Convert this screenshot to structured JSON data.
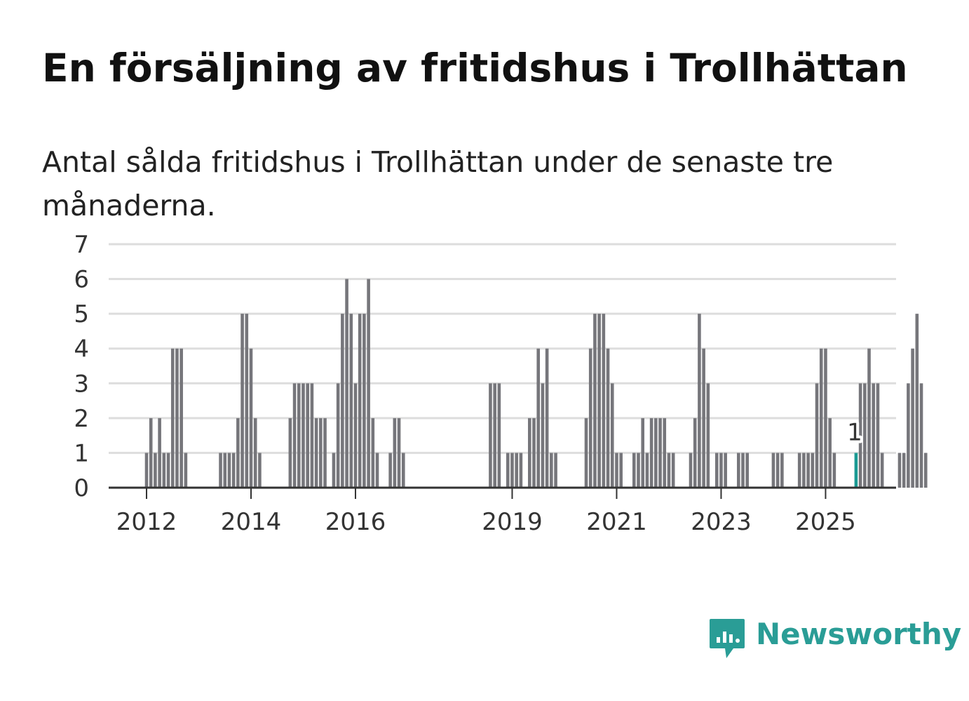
{
  "title": "En försäljning av fritidshus i Trollhättan",
  "subtitle": "Antal sålda fritidshus i Trollhättan under de senaste tre månaderna.",
  "brand": {
    "name": "Newsworthy",
    "color": "#2a9d96",
    "icon": "newsworthy-logo-icon"
  },
  "colors": {
    "bar": "#76767b",
    "highlight": "#1a9a93",
    "grid": "#dddddd",
    "axis": "#333333"
  },
  "chart_data": {
    "type": "bar",
    "title": "En försäljning av fritidshus i Trollhättan",
    "xlabel": "",
    "ylabel": "",
    "ylim": [
      0,
      7
    ],
    "yticks": [
      "0",
      "1",
      "2",
      "3",
      "4",
      "5",
      "6",
      "7"
    ],
    "xticks": [
      {
        "label": "2012",
        "month_index": 12
      },
      {
        "label": "2014",
        "month_index": 36
      },
      {
        "label": "2016",
        "month_index": 60
      },
      {
        "label": "2019",
        "month_index": 96
      },
      {
        "label": "2021",
        "month_index": 120
      },
      {
        "label": "2023",
        "month_index": 144
      },
      {
        "label": "2025",
        "month_index": 168
      }
    ],
    "x_start": "2011-01",
    "x_end": "2026-01",
    "series": [
      {
        "name": "Antal sålda fritidshus",
        "start": "2011-01",
        "values": [
          0,
          0,
          0,
          0,
          0,
          0,
          0,
          0,
          0,
          0,
          0,
          0,
          1,
          2,
          1,
          2,
          1,
          1,
          4,
          4,
          4,
          1,
          0,
          0,
          0,
          0,
          0,
          0,
          0,
          1,
          1,
          1,
          1,
          2,
          5,
          5,
          4,
          2,
          1,
          0,
          0,
          0,
          0,
          0,
          0,
          2,
          3,
          3,
          3,
          3,
          3,
          2,
          2,
          2,
          0,
          1,
          3,
          5,
          6,
          5,
          3,
          5,
          5,
          6,
          2,
          1,
          0,
          0,
          1,
          2,
          2,
          1,
          0,
          0,
          0,
          0,
          0,
          0,
          0,
          0,
          0,
          0,
          0,
          0,
          0,
          0,
          0,
          0,
          0,
          0,
          0,
          3,
          3,
          3,
          0,
          1,
          1,
          1,
          1,
          0,
          2,
          2,
          4,
          3,
          4,
          1,
          1,
          0,
          0,
          0,
          0,
          0,
          0,
          2,
          4,
          5,
          5,
          5,
          4,
          3,
          1,
          1,
          0,
          0,
          1,
          1,
          2,
          1,
          2,
          2,
          2,
          2,
          1,
          1,
          0,
          0,
          0,
          1,
          2,
          5,
          4,
          3,
          0,
          1,
          1,
          1,
          0,
          0,
          1,
          1,
          1,
          0,
          0,
          0,
          0,
          0,
          1,
          1,
          1,
          0,
          0,
          0,
          1,
          1,
          1,
          1,
          3,
          4,
          4,
          2,
          1,
          0,
          0,
          0,
          0,
          1,
          3,
          3,
          4,
          3,
          3,
          1,
          0,
          0,
          0,
          1,
          1,
          3,
          4,
          5,
          3,
          1
        ]
      }
    ],
    "highlight": {
      "month": "2025-08",
      "value": 1,
      "label": "1"
    }
  }
}
